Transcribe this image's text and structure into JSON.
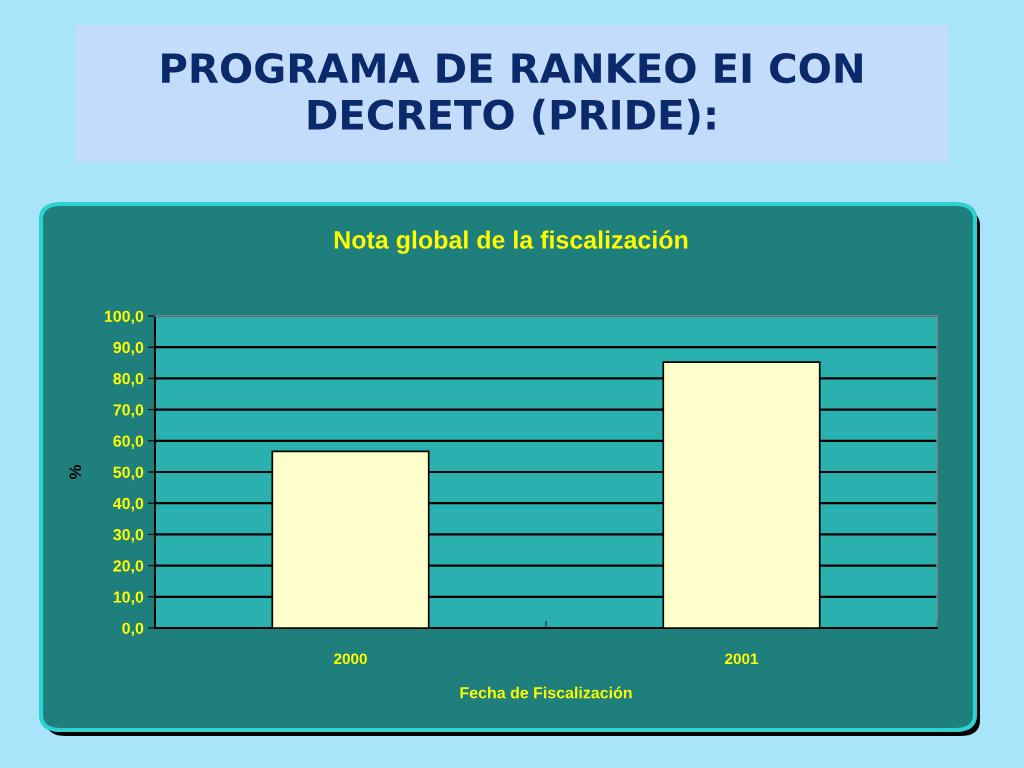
{
  "chart_data": {
    "type": "bar",
    "title": "PROGRAMA DE RANKEO EI CON\nDECRETO (PRIDE):",
    "subtitle": "Nota global de la fiscalización",
    "xlabel": "Fecha de Fiscalización",
    "ylabel": "%",
    "categories": [
      "2000",
      "2001"
    ],
    "values": [
      56.6,
      85.2
    ],
    "color": "#ffffcc",
    "ylim": [
      0,
      100
    ],
    "yticks": [
      {
        "value": 0,
        "label": "0,0"
      },
      {
        "value": 10,
        "label": "10,0"
      },
      {
        "value": 20,
        "label": "20,0"
      },
      {
        "value": 30,
        "label": "30,0"
      },
      {
        "value": 40,
        "label": "40,0"
      },
      {
        "value": 50,
        "label": "50,0"
      },
      {
        "value": 60,
        "label": "60,0"
      },
      {
        "value": 70,
        "label": "70,0"
      },
      {
        "value": 80,
        "label": "80,0"
      },
      {
        "value": 90,
        "label": "90,0"
      },
      {
        "value": 100,
        "label": "100,0"
      }
    ],
    "grid": "y"
  }
}
